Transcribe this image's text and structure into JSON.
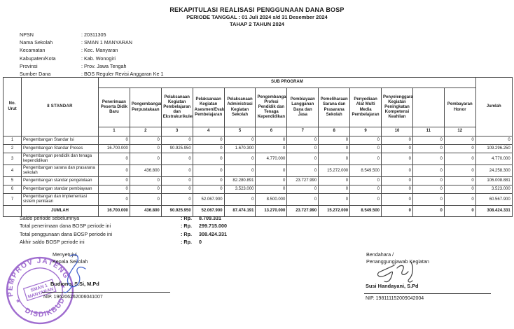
{
  "header": {
    "title": "REKAPITULASI REALISASI PENGGUNAAN DANA BOSP",
    "subtitle1": "PERIODE TANGGAL : 01 Juli 2024 s/d 31 Desember 2024",
    "subtitle2": "TAHAP 2 TAHUN 2024"
  },
  "info": {
    "rows": [
      {
        "label": "NPSN",
        "value": ": 20311305"
      },
      {
        "label": "Nama Sekolah",
        "value": ": SMAN 1 MANYARAN"
      },
      {
        "label": "Kecamatan",
        "value": ": Kec. Manyaran"
      },
      {
        "label": "Kabupaten/Kota",
        "value": ": Kab. Wonogiri"
      },
      {
        "label": "Provinsi",
        "value": ": Prov. Jawa Tengah"
      },
      {
        "label": "Sumber Dana",
        "value": ": BOS Reguler Revisi Anggaran Ke 1"
      }
    ]
  },
  "table": {
    "no_label": "No. Urut",
    "standar_label": "8 STANDAR",
    "subprogram_label": "SUB PROGRAM",
    "jumlah_label": "Jumlah",
    "subcolumns": [
      {
        "num": "1",
        "name": "Penerimaan Peserta Didik Baru"
      },
      {
        "num": "2",
        "name": "Pengembangan Perpustakaan"
      },
      {
        "num": "3",
        "name": "Pelaksanaan Kegiatan Pembelajaran dan Ekstrakurikuler"
      },
      {
        "num": "4",
        "name": "Pelaksanaan Kegiatan Asesmen/Evaluasi Pembelajaran"
      },
      {
        "num": "5",
        "name": "Pelaksanaan Administrasi Kegiatan Sekolah"
      },
      {
        "num": "6",
        "name": "Pengembangan Profesi Pendidik dan Tenaga Kependidikan"
      },
      {
        "num": "7",
        "name": "Pembiayaan Langganan Daya dan Jasa"
      },
      {
        "num": "8",
        "name": "Pemeliharaan Sarana dan Prasarana Sekolah"
      },
      {
        "num": "9",
        "name": "Penyediaan Alat Multi Media Pembelajaran"
      },
      {
        "num": "10",
        "name": "Penyelenggaran Kegiatan Peningkatan Kompetensi Keahlian"
      },
      {
        "num": "11",
        "name": ""
      },
      {
        "num": "12",
        "name": "Pembayaran Honor"
      }
    ],
    "rows": [
      {
        "no": "1",
        "name": "Pengembangan Standar Isi",
        "values": [
          "0",
          "0",
          "0",
          "0",
          "0",
          "0",
          "0",
          "0",
          "0",
          "0",
          "0",
          "0"
        ],
        "jumlah": "0"
      },
      {
        "no": "2",
        "name": "Pengembangan Standar Proses",
        "values": [
          "16.700.000",
          "0",
          "90.925.950",
          "0",
          "1.670.300",
          "0",
          "0",
          "0",
          "0",
          "0",
          "0",
          "0"
        ],
        "jumlah": "109.296.250"
      },
      {
        "no": "3",
        "name": "Pengembangan pendidik dan tenaga kependidikan",
        "values": [
          "0",
          "0",
          "0",
          "0",
          "0",
          "4.770.000",
          "0",
          "0",
          "0",
          "0",
          "0",
          "0"
        ],
        "jumlah": "4.770.000"
      },
      {
        "no": "4",
        "name": "Pengembangan sarana dan prasarana sekolah",
        "values": [
          "0",
          "436.800",
          "0",
          "0",
          "0",
          "0",
          "0",
          "15.272.000",
          "8.549.500",
          "0",
          "0",
          "0"
        ],
        "jumlah": "24.258.300"
      },
      {
        "no": "5",
        "name": "Pengembangan standar pengelolaan",
        "values": [
          "0",
          "0",
          "0",
          "0",
          "82.280.891",
          "0",
          "23.727.990",
          "0",
          "0",
          "0",
          "0",
          "0"
        ],
        "jumlah": "106.008.881"
      },
      {
        "no": "6",
        "name": "Pengembangan standar pembiayaan",
        "values": [
          "0",
          "0",
          "0",
          "0",
          "3.523.000",
          "0",
          "0",
          "0",
          "0",
          "0",
          "0",
          "0"
        ],
        "jumlah": "3.523.000"
      },
      {
        "no": "7",
        "name": "Pengembangan dan implementasi sistem penilaian",
        "values": [
          "0",
          "0",
          "0",
          "52.067.900",
          "0",
          "8.500.000",
          "0",
          "0",
          "0",
          "0",
          "0",
          "0"
        ],
        "jumlah": "60.567.900"
      }
    ],
    "total": {
      "label": "JUMLAH",
      "values": [
        "16.700.000",
        "436.800",
        "90.925.950",
        "52.067.900",
        "87.474.191",
        "13.270.000",
        "23.727.990",
        "15.272.000",
        "8.549.500",
        "0",
        "0",
        "0"
      ],
      "jumlah": "308.424.331"
    }
  },
  "summary": {
    "rows": [
      {
        "label": "Saldo periode sebelumnya",
        "prefix": ": Rp.",
        "amount": "8.709.331"
      },
      {
        "label": "Total penerimaan dana BOSP periode ini",
        "prefix": ": Rp.",
        "amount": "299.715.000"
      },
      {
        "label": "Total penggunaan dana BOSP periode ini",
        "prefix": ": Rp.",
        "amount": "308.424.331"
      },
      {
        "label": "Akhir saldo BOSP periode ini",
        "prefix": ": Rp.",
        "amount": "0"
      }
    ]
  },
  "signatures": {
    "left": {
      "role1": "Menyetujui,",
      "role2": "Kepala Sekolah",
      "name": "Budiono, S.Si, M.Pd",
      "nip": "NIP. 196206262006041007"
    },
    "right": {
      "role1": "Bendahara /",
      "role2": "Penanggungjawab Kegiatan",
      "name": "Susi Handayani, S.Pd",
      "nip": "NIP. 198111152009042004"
    },
    "stamp": {
      "top_text": "PEMPROV JATENG",
      "bottom_text": "DISDIKBUD",
      "center_line1": "SMAN 1",
      "center_line2": "MANYARAN",
      "color": "#8a4bc4"
    }
  }
}
